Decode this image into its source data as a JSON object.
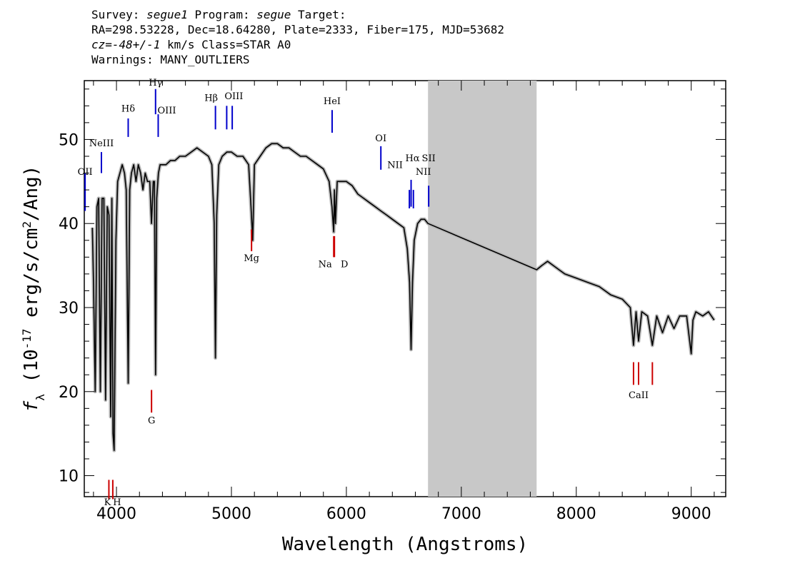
{
  "header": {
    "survey_label": "Survey:",
    "survey": "segue1",
    "program_label": "Program:",
    "program": "segue",
    "target_label": "Target:",
    "line2": "RA=298.53228, Dec=18.64280, Plate=2333, Fiber=175, MJD=53682",
    "cz": "cz=-48+/-1",
    "cz_units": "km/s",
    "class": "Class=STAR A0",
    "warnings": "Warnings: MANY_OUTLIERS"
  },
  "chart_data": {
    "type": "line",
    "xlabel": "Wavelength (Angstroms)",
    "ylabel": "f_λ (10^-17 erg/s/cm^2/Ang)",
    "xlim": [
      3720,
      9300
    ],
    "ylim": [
      7.5,
      57
    ],
    "x_ticks": [
      4000,
      5000,
      6000,
      7000,
      8000,
      9000
    ],
    "y_ticks": [
      10,
      20,
      30,
      40,
      50
    ],
    "masked_region": [
      6710,
      7655
    ],
    "series": [
      {
        "color": "#000000",
        "x": [
          3790,
          3800,
          3815,
          3830,
          3845,
          3860,
          3875,
          3890,
          3905,
          3920,
          3935,
          3950,
          3960,
          3970,
          3980,
          3995,
          4010,
          4030,
          4050,
          4070,
          4085,
          4102,
          4115,
          4130,
          4150,
          4170,
          4190,
          4210,
          4230,
          4250,
          4270,
          4290,
          4305,
          4320,
          4330,
          4340,
          4350,
          4365,
          4380,
          4400,
          4430,
          4470,
          4510,
          4550,
          4600,
          4650,
          4700,
          4750,
          4800,
          4830,
          4850,
          4861,
          4872,
          4890,
          4920,
          4960,
          5000,
          5050,
          5100,
          5150,
          5170,
          5185,
          5200,
          5250,
          5300,
          5350,
          5400,
          5450,
          5500,
          5550,
          5600,
          5650,
          5700,
          5750,
          5800,
          5850,
          5875,
          5890,
          5896,
          5905,
          5920,
          5950,
          6000,
          6050,
          6100,
          6150,
          6200,
          6250,
          6300,
          6350,
          6400,
          6450,
          6500,
          6530,
          6550,
          6563,
          6575,
          6590,
          6620,
          6650,
          6680,
          6710,
          7655,
          7700,
          7750,
          7800,
          7850,
          7900,
          8000,
          8100,
          8200,
          8300,
          8400,
          8470,
          8498,
          8520,
          8542,
          8570,
          8620,
          8662,
          8700,
          8750,
          8800,
          8850,
          8900,
          8960,
          9000,
          9015,
          9040,
          9100,
          9150,
          9200
        ],
        "values": [
          39.5,
          33,
          20,
          42,
          43,
          20,
          43,
          43,
          19,
          42,
          41,
          17,
          43,
          15,
          13,
          38,
          45,
          46,
          47,
          46,
          44,
          21,
          44,
          46,
          47,
          45,
          47,
          46,
          44,
          46,
          45,
          45,
          40,
          45,
          45,
          22,
          43,
          46,
          47,
          47,
          47,
          47.5,
          47.5,
          48,
          48,
          48.5,
          49,
          48.5,
          48,
          47,
          40,
          24,
          41,
          47,
          48,
          48.5,
          48.5,
          48,
          48,
          47,
          42,
          38,
          47,
          48,
          49,
          49.5,
          49.5,
          49,
          49,
          48.5,
          48,
          48,
          47.5,
          47,
          46.5,
          45,
          42,
          39,
          44,
          40,
          45,
          45,
          45,
          44.5,
          43.5,
          43,
          42.5,
          42,
          41.5,
          41,
          40.5,
          40,
          39.5,
          37,
          33,
          25,
          33,
          38,
          40,
          40.5,
          40.5,
          40,
          34.5,
          35,
          35.5,
          35,
          34.5,
          34,
          33.5,
          33,
          32.5,
          31.5,
          31,
          30,
          25.5,
          29.5,
          26,
          29.5,
          29,
          25.5,
          29,
          27,
          29,
          27.5,
          29,
          29,
          24.5,
          28.5,
          29.5,
          29,
          29.5,
          28.5
        ]
      }
    ],
    "line_markers": [
      {
        "label": "OII",
        "x": 3727,
        "color": "blue",
        "y_top": 46,
        "y_bottom": 41.5,
        "label_y": 45.8
      },
      {
        "label": "NeIII",
        "x": 3869,
        "color": "blue",
        "y_top": 48.5,
        "y_bottom": 46,
        "label_y": 49.2
      },
      {
        "label": "Hδ",
        "x": 4102,
        "color": "blue",
        "y_top": 52.5,
        "y_bottom": 50.3,
        "label_y": 53.3
      },
      {
        "label": "Hγ",
        "x": 4340,
        "color": "blue",
        "y_top": 56,
        "y_bottom": 53,
        "label_y": 56.4
      },
      {
        "label": "OIII",
        "x": 4363,
        "color": "blue",
        "y_top": 53,
        "y_bottom": 50.3,
        "label_y": 53.1
      },
      {
        "label": "Hβ",
        "x": 4861,
        "color": "blue",
        "y_top": 54,
        "y_bottom": 51.2,
        "label_y": 54.6
      },
      {
        "label": "OIII",
        "x": 4959,
        "color": "blue",
        "y_top": 54,
        "y_bottom": 51.2,
        "label_y": 54.8
      },
      {
        "label": "OIII",
        "x": 5007,
        "color": "blue",
        "y_top": 54,
        "y_bottom": 51.2,
        "label_y": 54.8
      },
      {
        "label": "HeI",
        "x": 5876,
        "color": "blue",
        "y_top": 53.5,
        "y_bottom": 50.8,
        "label_y": 54.2
      },
      {
        "label": "OI",
        "x": 6300,
        "color": "blue",
        "y_top": 49.2,
        "y_bottom": 46.4,
        "label_y": 49.8
      },
      {
        "label": "NII",
        "x": 6548,
        "color": "blue",
        "y_top": 44,
        "y_bottom": 41.8,
        "label_y": 46.6
      },
      {
        "label": "Hα",
        "x": 6563,
        "color": "blue",
        "y_top": 45.2,
        "y_bottom": 42,
        "label_y": 47.4
      },
      {
        "label": "NII",
        "x": 6583,
        "color": "blue",
        "y_top": 44,
        "y_bottom": 41.8,
        "label_y": 45.8
      },
      {
        "label": "SII",
        "x": 6716,
        "color": "blue",
        "y_top": 44.5,
        "y_bottom": 42,
        "label_y": 47.4
      },
      {
        "label": "Mg",
        "x": 5175,
        "color": "red",
        "y_top": 39.3,
        "y_bottom": 36.7,
        "label_y": 35.5
      },
      {
        "label": "Na",
        "x": 5890,
        "color": "red",
        "y_top": 38.5,
        "y_bottom": 36,
        "label_y": 34.8
      },
      {
        "label": "D",
        "x": 5896,
        "color": "red",
        "y_top": 38.5,
        "y_bottom": 36,
        "label_y": 34.8
      },
      {
        "label": "G",
        "x": 4305,
        "color": "red",
        "y_top": 20.2,
        "y_bottom": 17.5,
        "label_y": 16.2
      },
      {
        "label": "CaII",
        "x": 8498,
        "color": "red",
        "y_top": 23.5,
        "y_bottom": 20.8,
        "label_y": 19.2
      },
      {
        "label": "",
        "x": 8542,
        "color": "red",
        "y_top": 23.5,
        "y_bottom": 20.8,
        "label_y": 19.2
      },
      {
        "label": "",
        "x": 8662,
        "color": "red",
        "y_top": 23.5,
        "y_bottom": 20.8,
        "label_y": 19.2
      },
      {
        "label": "K",
        "x": 3934,
        "color": "red",
        "y_top": 9.5,
        "y_bottom": 7.2,
        "label_y": 6.5
      },
      {
        "label": "H",
        "x": 3968,
        "color": "red",
        "y_top": 9.5,
        "y_bottom": 7.2,
        "label_y": 6.5
      }
    ]
  }
}
